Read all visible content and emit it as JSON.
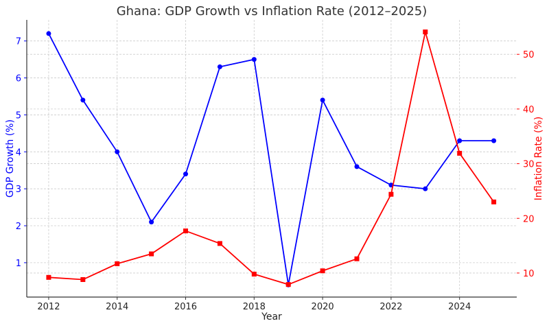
{
  "chart_data": {
    "type": "line",
    "title": "Ghana: GDP Growth vs Inflation Rate (2012–2025)",
    "xlabel": "Year",
    "x": [
      2012,
      2013,
      2014,
      2015,
      2016,
      2017,
      2018,
      2019,
      2020,
      2021,
      2022,
      2023,
      2024,
      2025
    ],
    "xlim": [
      2011.36,
      2025.67
    ],
    "xticks": [
      2012,
      2014,
      2016,
      2018,
      2020,
      2022,
      2024
    ],
    "grid": true,
    "left_axis": {
      "label": "GDP Growth (%)",
      "color": "#0000ff",
      "ylim": [
        0.07,
        7.57
      ],
      "ticks": [
        1,
        2,
        3,
        4,
        5,
        6,
        7
      ]
    },
    "right_axis": {
      "label": "Inflation Rate (%)",
      "color": "#ff0000",
      "ylim": [
        5.6,
        56.3
      ],
      "ticks": [
        10,
        20,
        30,
        40,
        50
      ]
    },
    "series": [
      {
        "axis": "left",
        "color": "#0000ff",
        "marker": "circle",
        "values": [
          7.2,
          5.4,
          4.0,
          2.1,
          3.4,
          6.3,
          6.5,
          0.4,
          5.4,
          3.6,
          3.1,
          3.0,
          4.3,
          4.3
        ]
      },
      {
        "axis": "right",
        "color": "#ff0000",
        "marker": "square",
        "values": [
          9.2,
          8.8,
          11.7,
          13.5,
          17.7,
          15.4,
          9.8,
          7.9,
          10.4,
          12.6,
          24.4,
          54.1,
          31.9,
          23.0
        ]
      }
    ]
  }
}
